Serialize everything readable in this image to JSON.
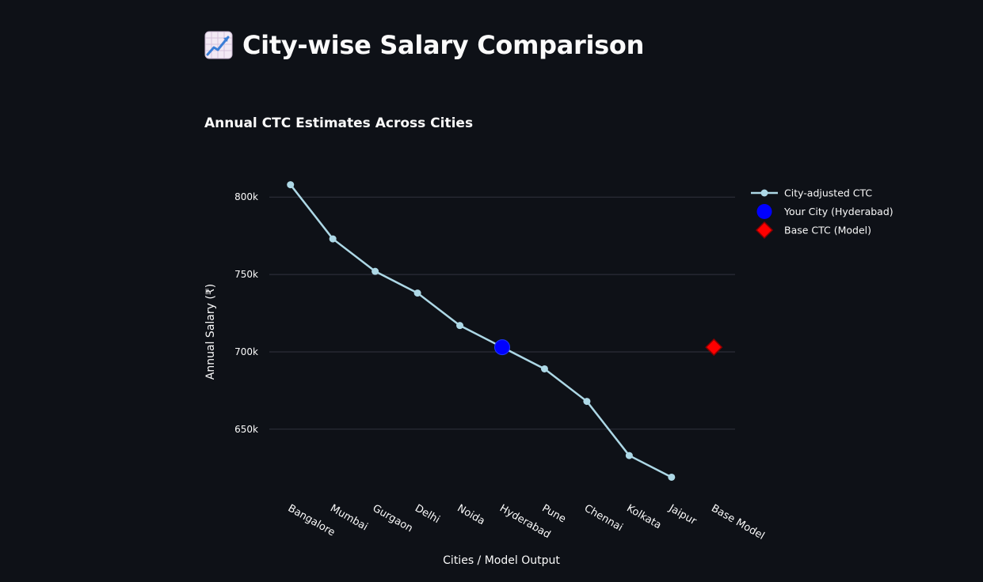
{
  "page": {
    "title": "City-wise Salary Comparison",
    "title_icon": "chart-increasing-icon"
  },
  "chart_data": {
    "type": "line",
    "title": "Annual CTC Estimates Across Cities",
    "xlabel": "Cities / Model Output",
    "ylabel": "Annual Salary (₹)",
    "categories": [
      "Bangalore",
      "Mumbai",
      "Gurgaon",
      "Delhi",
      "Noida",
      "Hyderabad",
      "Pune",
      "Chennai",
      "Kolkata",
      "Jaipur",
      "Base Model"
    ],
    "ylim": [
      608000,
      818000
    ],
    "yticks": [
      650000,
      700000,
      750000,
      800000
    ],
    "ytick_labels": [
      "650k",
      "700k",
      "750k",
      "800k"
    ],
    "grid": true,
    "legend_position": "top-right",
    "series": [
      {
        "name": "City-adjusted CTC",
        "kind": "line+markers",
        "color": "#add8e6",
        "x": [
          "Bangalore",
          "Mumbai",
          "Gurgaon",
          "Delhi",
          "Noida",
          "Hyderabad",
          "Pune",
          "Chennai",
          "Kolkata",
          "Jaipur"
        ],
        "values": [
          808000,
          773000,
          752000,
          738000,
          717000,
          703000,
          689000,
          668000,
          633000,
          619000
        ]
      },
      {
        "name": "Your City (Hyderabad)",
        "kind": "marker",
        "marker": "circle",
        "color": "#0000ff",
        "x": [
          "Hyderabad"
        ],
        "values": [
          703000
        ]
      },
      {
        "name": "Base CTC (Model)",
        "kind": "marker",
        "marker": "diamond",
        "color": "#ff0000",
        "x": [
          "Base Model"
        ],
        "values": [
          703000
        ]
      }
    ]
  }
}
